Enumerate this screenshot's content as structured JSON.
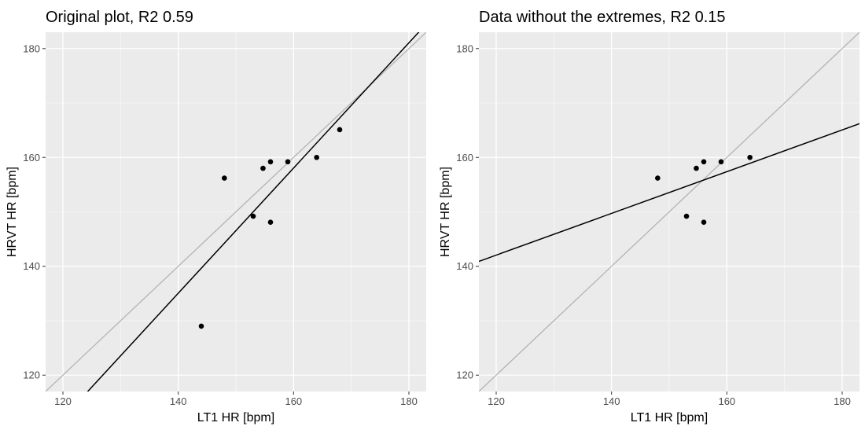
{
  "chart_data": [
    {
      "type": "scatter",
      "title": "Original plot, R2 0.59",
      "xlabel": "LT1 HR [bpm]",
      "ylabel": "HRVT HR [bpm]",
      "xlim": [
        117,
        183
      ],
      "ylim": [
        117,
        183
      ],
      "xticks": [
        120,
        140,
        160,
        180
      ],
      "yticks": [
        120,
        140,
        160,
        180
      ],
      "grid": true,
      "points": [
        {
          "x": 144,
          "y": 129
        },
        {
          "x": 148,
          "y": 156.2
        },
        {
          "x": 153,
          "y": 149.2
        },
        {
          "x": 154.7,
          "y": 158
        },
        {
          "x": 156,
          "y": 159.2
        },
        {
          "x": 156,
          "y": 148.1
        },
        {
          "x": 159,
          "y": 159.2
        },
        {
          "x": 164,
          "y": 160
        },
        {
          "x": 168,
          "y": 165.1
        }
      ],
      "lines": [
        {
          "role": "identity",
          "color": "#b3b3b3",
          "x1": 117,
          "y1": 117,
          "x2": 183,
          "y2": 183
        },
        {
          "role": "fit",
          "color": "#000000",
          "x1": 117,
          "y1": 108.6,
          "x2": 183,
          "y2": 184.5
        }
      ]
    },
    {
      "type": "scatter",
      "title": "Data without the extremes, R2 0.15",
      "xlabel": "LT1 HR [bpm]",
      "ylabel": "HRVT HR [bpm]",
      "xlim": [
        117,
        183
      ],
      "ylim": [
        117,
        183
      ],
      "xticks": [
        120,
        140,
        160,
        180
      ],
      "yticks": [
        120,
        140,
        160,
        180
      ],
      "grid": true,
      "points": [
        {
          "x": 148,
          "y": 156.2
        },
        {
          "x": 153,
          "y": 149.2
        },
        {
          "x": 154.7,
          "y": 158
        },
        {
          "x": 156,
          "y": 159.2
        },
        {
          "x": 156,
          "y": 148.1
        },
        {
          "x": 159,
          "y": 159.2
        },
        {
          "x": 164,
          "y": 160
        }
      ],
      "lines": [
        {
          "role": "identity",
          "color": "#b3b3b3",
          "x1": 117,
          "y1": 117,
          "x2": 183,
          "y2": 183
        },
        {
          "role": "fit",
          "color": "#000000",
          "x1": 117,
          "y1": 140.9,
          "x2": 183,
          "y2": 166.2
        }
      ]
    }
  ],
  "colors": {
    "panel_background": "#ebebeb",
    "grid_major": "#ffffff",
    "point": "#000000"
  }
}
